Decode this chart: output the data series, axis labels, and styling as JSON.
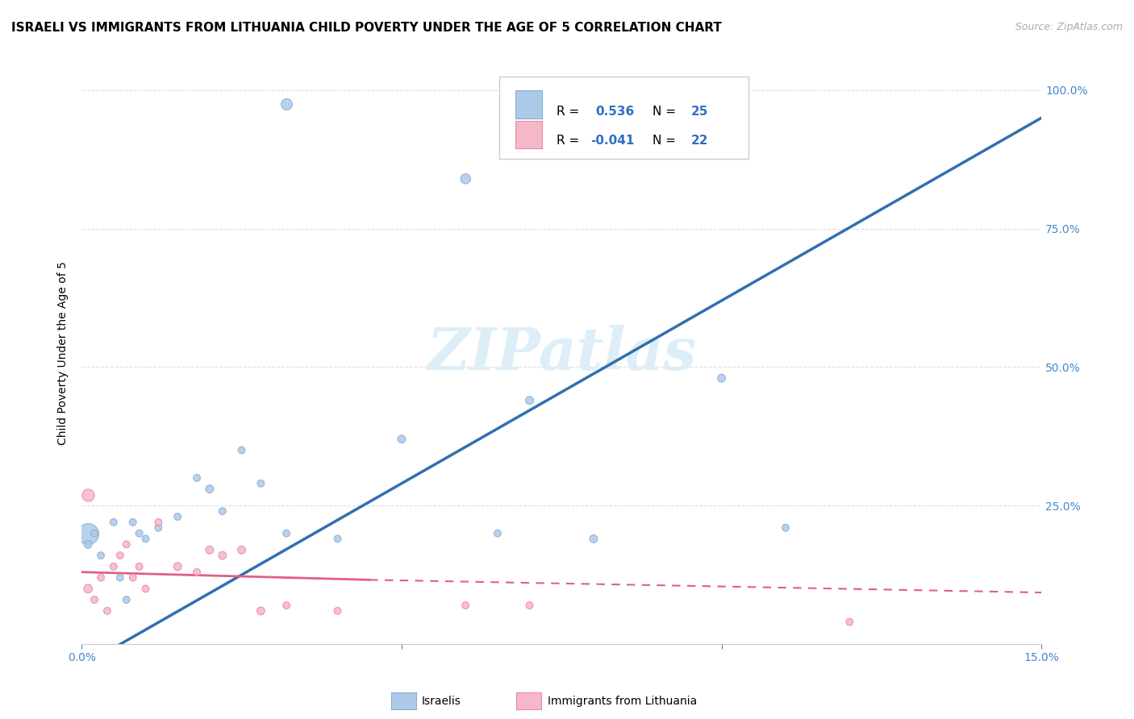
{
  "title": "ISRAELI VS IMMIGRANTS FROM LITHUANIA CHILD POVERTY UNDER THE AGE OF 5 CORRELATION CHART",
  "source": "Source: ZipAtlas.com",
  "ylabel": "Child Poverty Under the Age of 5",
  "xlim": [
    0.0,
    0.15
  ],
  "ylim": [
    0.0,
    1.05
  ],
  "legend_labels": [
    "Israelis",
    "Immigrants from Lithuania"
  ],
  "scatter_blue": {
    "x": [
      0.001,
      0.002,
      0.003,
      0.005,
      0.006,
      0.007,
      0.008,
      0.009,
      0.01,
      0.012,
      0.015,
      0.018,
      0.02,
      0.022,
      0.025,
      0.028,
      0.032,
      0.04,
      0.05,
      0.06,
      0.065,
      0.07,
      0.08,
      0.1,
      0.11
    ],
    "y": [
      0.18,
      0.2,
      0.16,
      0.22,
      0.12,
      0.08,
      0.22,
      0.2,
      0.19,
      0.21,
      0.23,
      0.3,
      0.28,
      0.24,
      0.35,
      0.29,
      0.2,
      0.19,
      0.37,
      0.84,
      0.2,
      0.44,
      0.19,
      0.48,
      0.21
    ],
    "sizes": [
      50,
      40,
      40,
      40,
      40,
      40,
      40,
      40,
      40,
      40,
      40,
      40,
      50,
      40,
      40,
      40,
      40,
      40,
      50,
      80,
      40,
      50,
      50,
      50,
      40
    ],
    "color": "#adc9e8",
    "edgecolor": "#85aed4"
  },
  "scatter_blue_large": {
    "x": [
      0.001
    ],
    "y": [
      0.2
    ],
    "sizes": [
      350
    ],
    "color": "#adc9e8",
    "edgecolor": "#85aed4"
  },
  "scatter_blue_top": {
    "x": [
      0.032
    ],
    "y": [
      0.975
    ],
    "sizes": [
      100
    ],
    "color": "#adc9e8",
    "edgecolor": "#85aed4"
  },
  "scatter_pink": {
    "x": [
      0.001,
      0.002,
      0.003,
      0.004,
      0.005,
      0.006,
      0.007,
      0.008,
      0.009,
      0.01,
      0.012,
      0.015,
      0.018,
      0.02,
      0.022,
      0.025,
      0.028,
      0.032,
      0.04,
      0.06,
      0.07,
      0.12
    ],
    "y": [
      0.1,
      0.08,
      0.12,
      0.06,
      0.14,
      0.16,
      0.18,
      0.12,
      0.14,
      0.1,
      0.22,
      0.14,
      0.13,
      0.17,
      0.16,
      0.17,
      0.06,
      0.07,
      0.06,
      0.07,
      0.07,
      0.04
    ],
    "sizes": [
      60,
      40,
      40,
      40,
      40,
      40,
      40,
      40,
      40,
      40,
      40,
      50,
      40,
      50,
      50,
      50,
      50,
      40,
      40,
      40,
      40,
      40
    ],
    "color": "#f5b8c8",
    "edgecolor": "#e888a8"
  },
  "scatter_pink_large": {
    "x": [
      0.001
    ],
    "y": [
      0.27
    ],
    "sizes": [
      120
    ],
    "color": "#f5b8c8",
    "edgecolor": "#e888a8"
  },
  "blue_line": {
    "x": [
      0.0,
      0.15
    ],
    "y": [
      -0.04,
      0.95
    ],
    "color": "#3070b0",
    "linewidth": 2.5
  },
  "pink_line_solid": {
    "x": [
      0.0,
      0.045
    ],
    "y": [
      0.13,
      0.116
    ],
    "color": "#e06080",
    "linewidth": 2.0
  },
  "pink_line_dashed": {
    "x": [
      0.045,
      0.155
    ],
    "y": [
      0.116,
      0.092
    ],
    "color": "#e06080",
    "linewidth": 1.5,
    "linestyle": "--"
  },
  "watermark": "ZIPatlas",
  "watermark_color": "#ddeef8",
  "background_color": "#ffffff",
  "grid_color": "#dddddd",
  "title_fontsize": 11,
  "axis_label_fontsize": 10,
  "tick_fontsize": 10,
  "tick_color": "#4488cc"
}
